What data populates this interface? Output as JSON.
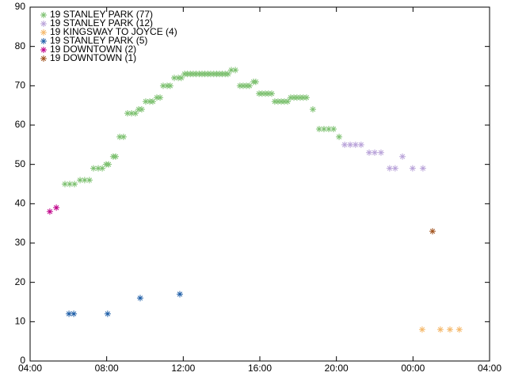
{
  "chart_data": {
    "type": "scatter",
    "xlim": [
      4,
      28
    ],
    "xticks": [
      {
        "value": 4,
        "label": "04:00"
      },
      {
        "value": 8,
        "label": "08:00"
      },
      {
        "value": 12,
        "label": "12:00"
      },
      {
        "value": 16,
        "label": "16:00"
      },
      {
        "value": 20,
        "label": "20:00"
      },
      {
        "value": 24,
        "label": "00:00"
      },
      {
        "value": 28,
        "label": "04:00"
      }
    ],
    "ylim": [
      0,
      90
    ],
    "yticks": [
      0,
      10,
      20,
      30,
      40,
      50,
      60,
      70,
      80,
      90
    ],
    "grid": false,
    "legend": "top-left",
    "series": [
      {
        "name": "19 STANLEY PARK (77)",
        "color": "#7cc06f",
        "x": [
          5.82,
          6.07,
          6.32,
          6.61,
          6.85,
          7.1,
          7.31,
          7.56,
          7.77,
          7.97,
          8.1,
          8.34,
          8.47,
          8.68,
          8.88,
          9.09,
          9.3,
          9.5,
          9.67,
          9.83,
          10.04,
          10.25,
          10.41,
          10.62,
          10.79,
          10.95,
          11.16,
          11.32,
          11.53,
          11.74,
          11.9,
          12.07,
          12.22,
          12.37,
          12.52,
          12.67,
          12.83,
          12.98,
          13.13,
          13.28,
          13.43,
          13.59,
          13.74,
          13.89,
          14.04,
          14.19,
          14.34,
          14.51,
          14.72,
          14.96,
          15.13,
          15.3,
          15.46,
          15.67,
          15.79,
          15.96,
          16.12,
          16.29,
          16.45,
          16.62,
          16.78,
          16.95,
          17.12,
          17.28,
          17.45,
          17.61,
          17.78,
          17.94,
          18.11,
          18.27,
          18.44,
          18.77,
          19.1,
          19.35,
          19.6,
          19.85,
          20.14
        ],
        "values": [
          45,
          45,
          45,
          46,
          46,
          46,
          49,
          49,
          49,
          50,
          50,
          52,
          52,
          57,
          57,
          63,
          63,
          63,
          64,
          64,
          66,
          66,
          66,
          67,
          67,
          70,
          70,
          70,
          72,
          72,
          72,
          73,
          73,
          73,
          73,
          73,
          73,
          73,
          73,
          73,
          73,
          73,
          73,
          73,
          73,
          73,
          73,
          74,
          74,
          70,
          70,
          70,
          70,
          71,
          71,
          68,
          68,
          68,
          68,
          68,
          66,
          66,
          66,
          66,
          66,
          67,
          67,
          67,
          67,
          67,
          67,
          64,
          59,
          59,
          59,
          59,
          57
        ]
      },
      {
        "name": "19 STANLEY PARK (12)",
        "color": "#b9a3d9",
        "x": [
          20.43,
          20.72,
          21.0,
          21.29,
          21.71,
          22.0,
          22.33,
          22.78,
          23.07,
          23.45,
          23.98,
          24.52
        ],
        "values": [
          55,
          55,
          55,
          55,
          53,
          53,
          53,
          49,
          49,
          52,
          49,
          49
        ]
      },
      {
        "name": "19 KINGSWAY TO  JOYCE (4)",
        "color": "#f5b86a",
        "x": [
          24.48,
          25.43,
          25.93,
          26.42
        ],
        "values": [
          8,
          8,
          8,
          8
        ]
      },
      {
        "name": "19 STANLEY PARK (5)",
        "color": "#1f5fa8",
        "x": [
          6.03,
          6.28,
          8.05,
          9.75,
          11.82
        ],
        "values": [
          12,
          12,
          12,
          16,
          17
        ]
      },
      {
        "name": "19 DOWNTOWN (2)",
        "color": "#c0008a",
        "x": [
          5.03,
          5.37
        ],
        "values": [
          38,
          39
        ]
      },
      {
        "name": "19 DOWNTOWN (1)",
        "color": "#a0501a",
        "x": [
          25.02
        ],
        "values": [
          33
        ]
      }
    ]
  }
}
